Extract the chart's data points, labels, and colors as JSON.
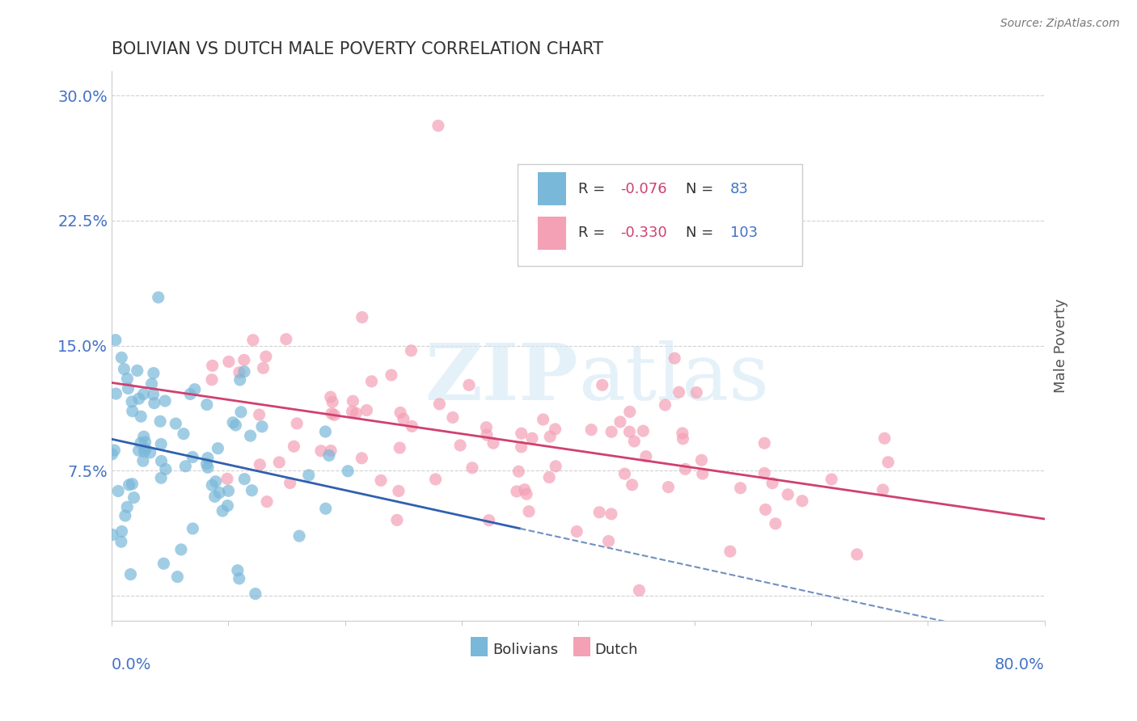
{
  "title": "BOLIVIAN VS DUTCH MALE POVERTY CORRELATION CHART",
  "source_text": "Source: ZipAtlas.com",
  "ylabel": "Male Poverty",
  "yticks": [
    0.0,
    0.075,
    0.15,
    0.225,
    0.3
  ],
  "ytick_labels": [
    "",
    "7.5%",
    "15.0%",
    "22.5%",
    "30.0%"
  ],
  "xlim": [
    0.0,
    0.8
  ],
  "ylim": [
    -0.015,
    0.315
  ],
  "bolivian_color": "#7ab8d9",
  "dutch_color": "#f4a0b5",
  "bolivian_line_color": "#3060b0",
  "dutch_line_color": "#d04070",
  "dashed_line_color": "#7090c0",
  "bolivian_R": -0.076,
  "bolivian_N": 83,
  "dutch_R": -0.33,
  "dutch_N": 103,
  "background_color": "#ffffff",
  "grid_color": "#cccccc",
  "title_color": "#333333",
  "axis_label_color": "#4472c4",
  "legend_box_color": "#f0f0f0",
  "legend_R_color": "#d04070",
  "legend_N_color": "#4472c4",
  "watermark_color": "#d5e8f5"
}
